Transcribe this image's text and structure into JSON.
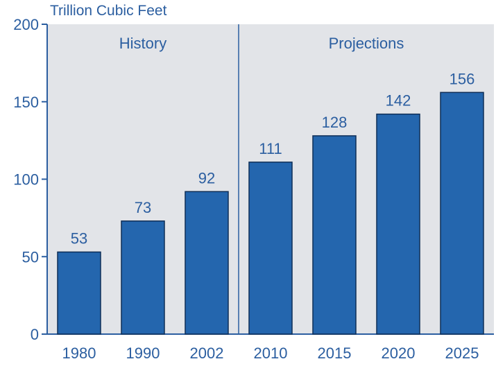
{
  "chart_data": {
    "type": "bar",
    "unit_label": "Trillion Cubic Feet",
    "section_labels": [
      "History",
      "Projections"
    ],
    "categories": [
      "1980",
      "1990",
      "2002",
      "2010",
      "2015",
      "2020",
      "2025"
    ],
    "values": [
      53,
      73,
      92,
      111,
      128,
      142,
      156
    ],
    "data_labels": [
      "53",
      "73",
      "92",
      "111",
      "128",
      "142",
      "156"
    ],
    "history_count": 3,
    "ylim": [
      0,
      200
    ],
    "yticks": [
      0,
      50,
      100,
      150,
      200
    ],
    "ytick_labels": [
      "0",
      "50",
      "100",
      "150",
      "200"
    ],
    "grid": false,
    "colors": {
      "bar": "#2466AE",
      "bar_edge": "#0E2E57",
      "plot_bg": "#E2E4E8",
      "axis": "#2B5EA0",
      "text": "#2B5EA0"
    }
  }
}
